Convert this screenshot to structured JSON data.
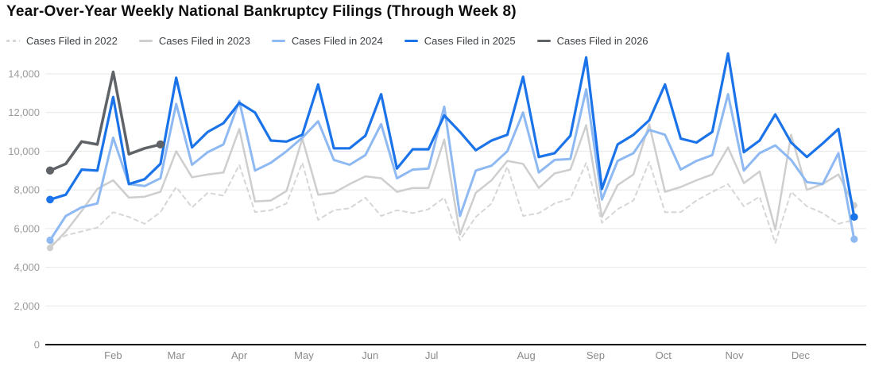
{
  "title": "Year-Over-Year Weekly National Bankruptcy Filings (Through Week 8)",
  "colors": {
    "title_text": "#0d0d0d",
    "legend_text": "#3c4043",
    "gridline": "#e7e7e7",
    "axis_line": "#000000",
    "tick_text": "#9b9b9b"
  },
  "chart_data": {
    "type": "line",
    "title": "Year-Over-Year Weekly National Bankruptcy Filings (Through Week 8)",
    "xlabel": "",
    "ylabel": "",
    "x_unit": "week of year (1-52)",
    "ylim": [
      0,
      14000
    ],
    "y_ticks": [
      0,
      2000,
      4000,
      6000,
      8000,
      10000,
      12000,
      14000
    ],
    "grid": true,
    "legend_position": "top-left",
    "months": [
      {
        "label": "Feb",
        "week": 5.0
      },
      {
        "label": "Mar",
        "week": 9.0
      },
      {
        "label": "Apr",
        "week": 13.0
      },
      {
        "label": "May",
        "week": 17.1
      },
      {
        "label": "Jun",
        "week": 21.3
      },
      {
        "label": "Jul",
        "week": 25.2
      },
      {
        "label": "Aug",
        "week": 31.2
      },
      {
        "label": "Sep",
        "week": 35.6
      },
      {
        "label": "Oct",
        "week": 39.9
      },
      {
        "label": "Nov",
        "week": 44.4
      },
      {
        "label": "Dec",
        "week": 48.6
      }
    ],
    "series": [
      {
        "name": "Cases Filed in 2022",
        "color": "#d6d6d6",
        "style": "dashed",
        "line_width": 2,
        "start_dot": false,
        "end_dot": false,
        "values": [
          5150,
          5650,
          5850,
          6050,
          6850,
          6600,
          6250,
          6850,
          8150,
          7100,
          7850,
          7700,
          9300,
          6850,
          6950,
          7300,
          9400,
          6450,
          6950,
          7050,
          7600,
          6650,
          6950,
          6800,
          7000,
          7600,
          5400,
          6600,
          7300,
          9200,
          6650,
          6800,
          7300,
          7550,
          9400,
          6300,
          7000,
          7450,
          9450,
          6850,
          6850,
          7450,
          7900,
          8300,
          7150,
          7650,
          5250,
          7900,
          7150,
          6800,
          6250,
          6450
        ]
      },
      {
        "name": "Cases Filed in 2023",
        "color": "#cecece",
        "style": "solid",
        "line_width": 2.5,
        "start_dot": true,
        "end_dot": true,
        "values": [
          5000,
          5850,
          6900,
          8050,
          8500,
          7600,
          7650,
          7900,
          10000,
          8650,
          8800,
          8900,
          11150,
          7400,
          7450,
          7950,
          10650,
          7750,
          7850,
          8300,
          8700,
          8600,
          7900,
          8100,
          8100,
          10600,
          5700,
          7850,
          8500,
          9500,
          9350,
          8100,
          8850,
          9050,
          11350,
          6600,
          8250,
          8800,
          11400,
          7900,
          8150,
          8500,
          8800,
          10200,
          8350,
          8950,
          5950,
          10850,
          8000,
          8300,
          8800,
          7200
        ]
      },
      {
        "name": "Cases Filed in 2024",
        "color": "#8fb9f2",
        "style": "solid",
        "line_width": 3,
        "start_dot": true,
        "end_dot": true,
        "values": [
          5400,
          6650,
          7100,
          7300,
          10700,
          8300,
          8200,
          8600,
          12450,
          9300,
          9950,
          10350,
          12600,
          9000,
          9400,
          10000,
          10700,
          11550,
          9550,
          9300,
          9800,
          11400,
          8600,
          9050,
          9100,
          12300,
          6650,
          9000,
          9250,
          10000,
          12000,
          8900,
          9550,
          9600,
          13200,
          7500,
          9500,
          9900,
          11100,
          10850,
          9050,
          9500,
          9800,
          12950,
          9000,
          9900,
          10300,
          9550,
          8400,
          8300,
          9900,
          5450
        ]
      },
      {
        "name": "Cases Filed in 2025",
        "color": "#1a73e8",
        "style": "solid",
        "line_width": 3.2,
        "start_dot": true,
        "end_dot": true,
        "values": [
          7500,
          7750,
          9050,
          9000,
          12800,
          8300,
          8550,
          9350,
          13800,
          10200,
          11000,
          11450,
          12500,
          12000,
          10550,
          10500,
          10850,
          13450,
          10150,
          10150,
          10800,
          12950,
          9100,
          10100,
          10100,
          11850,
          11000,
          10050,
          10550,
          10850,
          13850,
          9700,
          9900,
          10800,
          14850,
          8050,
          10350,
          10850,
          11600,
          13450,
          10650,
          10450,
          11000,
          15050,
          9950,
          10550,
          11900,
          10450,
          9700,
          10400,
          11150,
          6600
        ]
      },
      {
        "name": "Cases Filed in 2026",
        "color": "#5f6368",
        "style": "solid",
        "line_width": 3.5,
        "start_dot": true,
        "end_dot": true,
        "values": [
          9000,
          9350,
          10500,
          10350,
          14100,
          9850,
          10150,
          10350
        ]
      }
    ]
  }
}
